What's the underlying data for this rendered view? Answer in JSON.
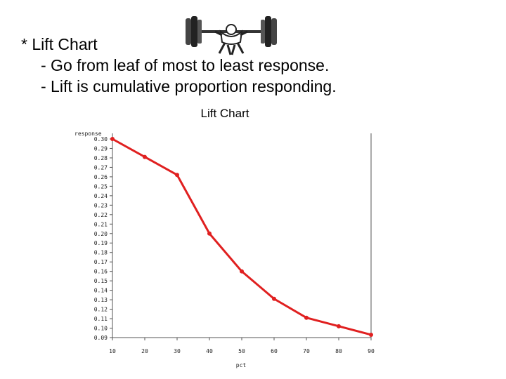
{
  "slide": {
    "bullet": "* Lift Chart",
    "sub1": "- Go from leaf of most  to least response.",
    "sub2": "- Lift is cumulative proportion responding."
  },
  "clipart_icon": "weightlifter-icon",
  "chart_data": {
    "type": "line",
    "title": "Lift Chart",
    "xlabel": "pct",
    "ylabel": "response",
    "x": [
      10,
      20,
      30,
      40,
      50,
      60,
      70,
      80,
      90
    ],
    "series": [
      {
        "values": [
          0.3,
          0.281,
          0.262,
          0.2,
          0.16,
          0.131,
          0.111,
          0.102,
          0.093
        ],
        "color": "#e02020"
      }
    ],
    "xticks": [
      "10",
      "20",
      "30",
      "40",
      "50",
      "60",
      "70",
      "80",
      "90"
    ],
    "yticks": [
      "0.30",
      "0.29",
      "0.28",
      "0.27",
      "0.26",
      "0.25",
      "0.24",
      "0.23",
      "0.22",
      "0.21",
      "0.20",
      "0.19",
      "0.18",
      "0.17",
      "0.16",
      "0.15",
      "0.14",
      "0.13",
      "0.12",
      "0.11",
      "0.10",
      "0.09"
    ],
    "xlim": [
      10,
      90
    ],
    "ylim": [
      0.09,
      0.3
    ],
    "grid": false,
    "axis_color": "#555555"
  }
}
